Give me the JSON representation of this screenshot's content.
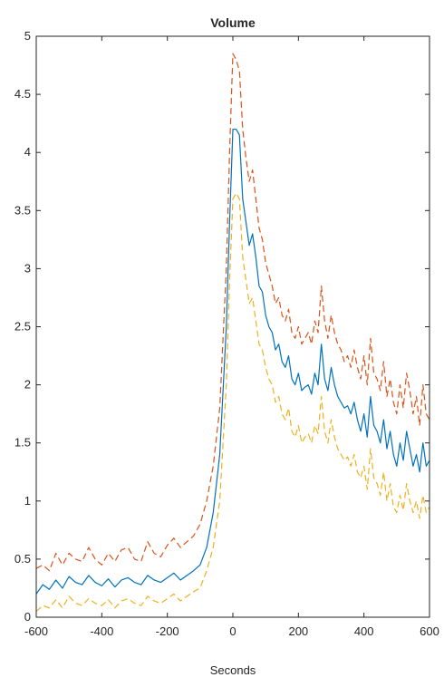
{
  "chart_data": {
    "type": "line",
    "title": "Volume",
    "xlabel": "Seconds",
    "ylabel": "",
    "xlim": [
      -600,
      600
    ],
    "ylim": [
      0,
      5
    ],
    "xticks": [
      "-600",
      "-400",
      "-200",
      "0",
      "200",
      "400",
      "600"
    ],
    "yticks": [
      "0",
      "0.5",
      "1",
      "1.5",
      "2",
      "2.5",
      "3",
      "3.5",
      "4",
      "4.5",
      "5"
    ],
    "grid": false,
    "legend": "none",
    "colors": {
      "axis": "#262626"
    },
    "x": [
      -600,
      -580,
      -560,
      -540,
      -520,
      -500,
      -480,
      -460,
      -440,
      -420,
      -400,
      -380,
      -360,
      -340,
      -320,
      -300,
      -280,
      -260,
      -240,
      -220,
      -200,
      -180,
      -160,
      -140,
      -120,
      -100,
      -80,
      -60,
      -40,
      -20,
      -10,
      0,
      10,
      20,
      30,
      40,
      50,
      60,
      70,
      80,
      90,
      100,
      110,
      120,
      130,
      140,
      150,
      160,
      170,
      180,
      190,
      200,
      210,
      220,
      230,
      240,
      250,
      260,
      270,
      280,
      290,
      300,
      310,
      320,
      330,
      340,
      350,
      360,
      370,
      380,
      390,
      400,
      410,
      420,
      430,
      440,
      450,
      460,
      470,
      480,
      490,
      500,
      510,
      520,
      530,
      540,
      550,
      560,
      570,
      580,
      590,
      600
    ],
    "series": [
      {
        "color": "#0072BD",
        "dash": "solid",
        "values": [
          0.2,
          0.28,
          0.24,
          0.32,
          0.25,
          0.35,
          0.3,
          0.28,
          0.36,
          0.3,
          0.27,
          0.33,
          0.26,
          0.32,
          0.34,
          0.3,
          0.28,
          0.36,
          0.32,
          0.3,
          0.34,
          0.38,
          0.32,
          0.36,
          0.4,
          0.45,
          0.6,
          0.9,
          1.4,
          2.5,
          3.4,
          4.2,
          4.2,
          4.15,
          3.6,
          3.4,
          3.2,
          3.3,
          3.1,
          2.85,
          2.8,
          2.6,
          2.5,
          2.45,
          2.3,
          2.35,
          2.2,
          2.15,
          2.25,
          2.05,
          2.0,
          2.1,
          1.95,
          1.98,
          2.0,
          1.92,
          2.1,
          2.0,
          2.35,
          2.05,
          1.95,
          2.15,
          2.0,
          1.9,
          1.85,
          1.8,
          1.82,
          1.75,
          1.85,
          1.7,
          1.6,
          1.75,
          1.55,
          1.9,
          1.65,
          1.6,
          1.5,
          1.7,
          1.45,
          1.6,
          1.4,
          1.3,
          1.5,
          1.35,
          1.6,
          1.45,
          1.3,
          1.4,
          1.25,
          1.5,
          1.3,
          1.35
        ]
      },
      {
        "color": "#D95319",
        "dash": "dashed",
        "values": [
          0.42,
          0.45,
          0.4,
          0.55,
          0.45,
          0.55,
          0.5,
          0.48,
          0.6,
          0.5,
          0.45,
          0.55,
          0.48,
          0.58,
          0.6,
          0.5,
          0.48,
          0.65,
          0.55,
          0.52,
          0.62,
          0.68,
          0.6,
          0.65,
          0.7,
          0.8,
          1.0,
          1.3,
          1.8,
          3.0,
          4.0,
          4.85,
          4.8,
          4.7,
          4.2,
          3.95,
          3.75,
          3.85,
          3.6,
          3.35,
          3.25,
          3.05,
          2.95,
          2.85,
          2.7,
          2.75,
          2.6,
          2.55,
          2.65,
          2.45,
          2.4,
          2.5,
          2.35,
          2.4,
          2.45,
          2.35,
          2.55,
          2.45,
          2.85,
          2.55,
          2.4,
          2.6,
          2.45,
          2.35,
          2.3,
          2.2,
          2.25,
          2.15,
          2.3,
          2.15,
          2.05,
          2.25,
          2.0,
          2.4,
          2.1,
          2.05,
          1.95,
          2.2,
          1.9,
          2.05,
          1.85,
          1.75,
          2.0,
          1.8,
          2.1,
          1.95,
          1.75,
          1.9,
          1.65,
          2.0,
          1.75,
          1.7
        ]
      },
      {
        "color": "#EDB120",
        "dash": "dashed",
        "values": [
          0.05,
          0.1,
          0.08,
          0.15,
          0.08,
          0.18,
          0.12,
          0.1,
          0.16,
          0.12,
          0.1,
          0.15,
          0.08,
          0.14,
          0.16,
          0.12,
          0.1,
          0.18,
          0.14,
          0.12,
          0.16,
          0.2,
          0.14,
          0.18,
          0.22,
          0.25,
          0.4,
          0.6,
          1.0,
          2.0,
          2.9,
          3.6,
          3.65,
          3.6,
          3.1,
          2.9,
          2.7,
          2.75,
          2.55,
          2.35,
          2.3,
          2.15,
          2.05,
          2.0,
          1.85,
          1.9,
          1.75,
          1.7,
          1.8,
          1.6,
          1.55,
          1.65,
          1.5,
          1.55,
          1.58,
          1.5,
          1.65,
          1.58,
          1.9,
          1.6,
          1.5,
          1.7,
          1.55,
          1.45,
          1.4,
          1.35,
          1.38,
          1.3,
          1.4,
          1.25,
          1.2,
          1.3,
          1.1,
          1.45,
          1.2,
          1.15,
          1.05,
          1.25,
          1.0,
          1.15,
          0.95,
          0.9,
          1.05,
          0.92,
          1.15,
          1.0,
          0.9,
          1.0,
          0.85,
          1.05,
          0.9,
          0.95
        ]
      }
    ]
  }
}
